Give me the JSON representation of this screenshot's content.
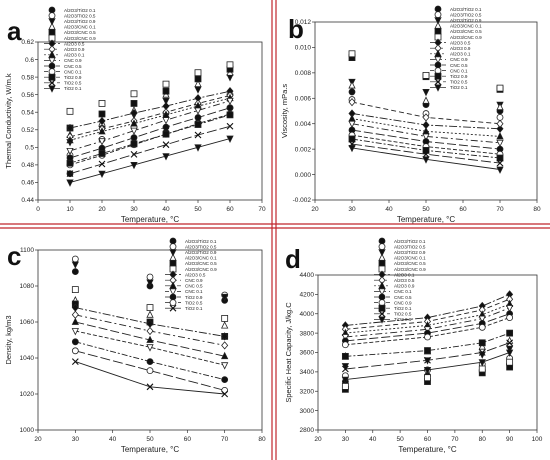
{
  "panels": [
    "a",
    "b",
    "c",
    "d"
  ],
  "divider_color": "#c0262c",
  "chart_data": [
    {
      "panel": "a",
      "type": "scatter",
      "ylabel": "Thermal Conductivity, W/m.k",
      "xlabel": "Temperature, °C",
      "xlim": [
        0,
        70
      ],
      "ylim": [
        0.44,
        0.62
      ],
      "xticks": [
        "0",
        "10",
        "20",
        "30",
        "40",
        "50",
        "60",
        "70"
      ],
      "yticks": [
        "0.44",
        "0.46",
        "0.48",
        "0.5",
        "0.52",
        "0.54",
        "0.56",
        "0.58",
        "0.6",
        "0.62"
      ],
      "x": [
        10,
        20,
        30,
        40,
        50,
        60
      ],
      "legend_position": "top-left",
      "series": [
        {
          "name": "Al2O3/TiO2 0.1",
          "kind": "points",
          "marker": "filled-circle",
          "values": [
            0.47,
            0.491,
            0.505,
            0.517,
            0.528,
            0.545
          ]
        },
        {
          "name": "Al2O3/TiO2 0.5",
          "kind": "points",
          "marker": "open-circle",
          "values": [
            0.491,
            0.509,
            0.523,
            0.539,
            0.548,
            0.56
          ]
        },
        {
          "name": "Al2O3/TiO2 0.9",
          "kind": "points",
          "marker": "filled-triangle-down",
          "values": [
            0.506,
            0.521,
            0.537,
            0.553,
            0.566,
            0.58
          ]
        },
        {
          "name": "Al2O3/CNC 0.1",
          "kind": "points",
          "marker": "open-triangle",
          "values": [
            0.514,
            0.528,
            0.542,
            0.56,
            0.572,
            0.585
          ]
        },
        {
          "name": "Al2O3/CNC 0.5",
          "kind": "points",
          "marker": "filled-square",
          "values": [
            0.522,
            0.538,
            0.55,
            0.564,
            0.578,
            0.589
          ]
        },
        {
          "name": "Al2O3/CNC 0.9",
          "kind": "points",
          "marker": "open-square",
          "values": [
            0.541,
            0.55,
            0.561,
            0.572,
            0.585,
            0.594
          ]
        },
        {
          "name": "Al2O3 0.5",
          "kind": "line",
          "dash": "8 2 2 2",
          "marker": "filled-diamond",
          "values": [
            0.522,
            0.53,
            0.539,
            0.547,
            0.556,
            0.564
          ]
        },
        {
          "name": "Al2O3 0.9",
          "kind": "line",
          "dash": "5 3",
          "marker": "open-diamond",
          "values": [
            0.512,
            0.521,
            0.53,
            0.54,
            0.55,
            0.559
          ]
        },
        {
          "name": "Al2O3 0.1",
          "kind": "line",
          "dash": "2 2",
          "marker": "filled-triangle",
          "values": [
            0.508,
            0.518,
            0.527,
            0.537,
            0.547,
            0.556
          ]
        },
        {
          "name": "CNC 0.9",
          "kind": "line",
          "dash": "7 3 2 3",
          "marker": "open-triangle-down",
          "values": [
            0.496,
            0.507,
            0.519,
            0.531,
            0.542,
            0.553
          ]
        },
        {
          "name": "CNC 0.5",
          "kind": "line",
          "dash": "9 3",
          "marker": "filled-circle",
          "values": [
            0.488,
            0.499,
            0.511,
            0.523,
            0.534,
            0.545
          ]
        },
        {
          "name": "CNC 0.1",
          "kind": "line",
          "dash": "4 2",
          "marker": "open-circle",
          "values": [
            0.48,
            0.491,
            0.503,
            0.515,
            0.527,
            0.538
          ]
        },
        {
          "name": "TiO2 0.9",
          "kind": "line",
          "dash": "6 2 2 2",
          "marker": "filled-square",
          "values": [
            0.482,
            0.493,
            0.504,
            0.515,
            0.526,
            0.537
          ]
        },
        {
          "name": "TiO2 0.5",
          "kind": "line",
          "dash": "10 3",
          "marker": "x",
          "values": [
            0.47,
            0.481,
            0.492,
            0.503,
            0.514,
            0.524
          ]
        },
        {
          "name": "TiO2 0.1",
          "kind": "line",
          "dash": "",
          "marker": "filled-triangle-down",
          "values": [
            0.46,
            0.47,
            0.48,
            0.49,
            0.5,
            0.51
          ]
        }
      ]
    },
    {
      "panel": "b",
      "type": "scatter",
      "ylabel": "Viscosity, mPa.s",
      "xlabel": "Temperature, °C",
      "xlim": [
        20,
        80
      ],
      "ylim": [
        -0.002,
        0.012
      ],
      "xticks": [
        "20",
        "30",
        "40",
        "50",
        "60",
        "70",
        "80"
      ],
      "yticks": [
        "-0.002",
        "0.000",
        "0.002",
        "0.004",
        "0.006",
        "0.008",
        "0.010",
        "0.012"
      ],
      "x": [
        30,
        50,
        70
      ],
      "legend_position": "top-right",
      "series": [
        {
          "name": "Al2O3/TiO2 0.1",
          "kind": "points",
          "marker": "filled-circle",
          "values": [
            0.0065,
            0.0055,
            0.005
          ]
        },
        {
          "name": "Al2O3/TiO2 0.5",
          "kind": "points",
          "marker": "open-circle",
          "values": [
            0.0059,
            0.0048,
            0.0045
          ]
        },
        {
          "name": "Al2O3/TiO2 0.9",
          "kind": "points",
          "marker": "filled-triangle-down",
          "values": [
            0.0073,
            0.0065,
            0.0055
          ]
        },
        {
          "name": "Al2O3/CNC 0.1",
          "kind": "points",
          "marker": "open-triangle",
          "values": [
            0.007,
            0.0058,
            0.0053
          ]
        },
        {
          "name": "Al2O3/CNC 0.5",
          "kind": "points",
          "marker": "filled-square",
          "values": [
            0.0092,
            0.0077,
            0.0067
          ]
        },
        {
          "name": "Al2O3/CNC 0.9",
          "kind": "points",
          "marker": "open-square",
          "values": [
            0.0095,
            0.0078,
            0.0068
          ]
        },
        {
          "name": "Al2O3 0.5",
          "kind": "line",
          "dash": "8 2 2 2",
          "marker": "filled-diamond",
          "values": [
            0.0048,
            0.0039,
            0.0036
          ]
        },
        {
          "name": "Al2O3 0.9",
          "kind": "line",
          "dash": "5 3",
          "marker": "open-diamond",
          "values": [
            0.0057,
            0.0045,
            0.004
          ]
        },
        {
          "name": "Al2O3 0.1",
          "kind": "line",
          "dash": "2 2",
          "marker": "filled-triangle",
          "values": [
            0.0044,
            0.0034,
            0.003
          ]
        },
        {
          "name": "CNC 0.9",
          "kind": "line",
          "dash": "7 3 2 3",
          "marker": "open-triangle-down",
          "values": [
            0.004,
            0.003,
            0.0025
          ]
        },
        {
          "name": "CNC 0.5",
          "kind": "line",
          "dash": "9 3",
          "marker": "filled-circle",
          "values": [
            0.0035,
            0.0026,
            0.002
          ]
        },
        {
          "name": "CNC 0.1",
          "kind": "line",
          "dash": "4 2",
          "marker": "open-circle",
          "values": [
            0.0031,
            0.0022,
            0.0016
          ]
        },
        {
          "name": "TiO2 0.9",
          "kind": "line",
          "dash": "6 2 2 2",
          "marker": "filled-square",
          "values": [
            0.0028,
            0.0019,
            0.0013
          ]
        },
        {
          "name": "TiO2 0.5",
          "kind": "line",
          "dash": "10 3",
          "marker": "x",
          "values": [
            0.0024,
            0.0016,
            0.0009
          ]
        },
        {
          "name": "TiO2 0.1",
          "kind": "line",
          "dash": "",
          "marker": "filled-triangle-down",
          "values": [
            0.0021,
            0.0012,
            0.0004
          ]
        }
      ]
    },
    {
      "panel": "c",
      "type": "scatter",
      "ylabel": "Density, kg/m3",
      "xlabel": "Temperature, °C",
      "xlim": [
        20,
        80
      ],
      "ylim": [
        1000,
        1100
      ],
      "xticks": [
        "20",
        "30",
        "40",
        "50",
        "60",
        "70",
        "80"
      ],
      "yticks": [
        "1000",
        "1020",
        "1040",
        "1060",
        "1080",
        "1100"
      ],
      "x": [
        30,
        50,
        70
      ],
      "legend_position": "top-right",
      "series": [
        {
          "name": "Al2O3/TiO2 0.1",
          "kind": "points",
          "marker": "filled-circle",
          "values": [
            1088,
            1080,
            1072
          ]
        },
        {
          "name": "Al2O3/TiO2 0.5",
          "kind": "points",
          "marker": "open-circle",
          "values": [
            1095,
            1085,
            1075
          ]
        },
        {
          "name": "Al2O3/TiO2 0.9",
          "kind": "points",
          "marker": "filled-triangle-down",
          "values": [
            1092,
            1082,
            1074
          ]
        },
        {
          "name": "Al2O3/CNC 0.1",
          "kind": "points",
          "marker": "open-triangle",
          "values": [
            1072,
            1064,
            1058
          ]
        },
        {
          "name": "Al2O3/CNC 0.5",
          "kind": "points",
          "marker": "filled-square",
          "values": [
            1070,
            1060,
            1052
          ]
        },
        {
          "name": "Al2O3/CNC 0.9",
          "kind": "points",
          "marker": "open-square",
          "values": [
            1078,
            1068,
            1062
          ]
        },
        {
          "name": "Al2O3 0.5",
          "kind": "line",
          "dash": "8 2 2 2",
          "marker": "filled-diamond",
          "values": [
            1068,
            1059,
            1052
          ]
        },
        {
          "name": "CNC 0.9",
          "kind": "line",
          "dash": "7 3 2 3",
          "marker": "open-diamond",
          "values": [
            1064,
            1055,
            1047
          ]
        },
        {
          "name": "CNC 0.5",
          "kind": "line",
          "dash": "9 3",
          "marker": "filled-triangle",
          "values": [
            1060,
            1050,
            1041
          ]
        },
        {
          "name": "CNC 0.1",
          "kind": "line",
          "dash": "4 2",
          "marker": "open-triangle-down",
          "values": [
            1055,
            1046,
            1036
          ]
        },
        {
          "name": "TiO2 0.9",
          "kind": "line",
          "dash": "6 2 2 2",
          "marker": "filled-circle",
          "values": [
            1049,
            1038,
            1028
          ]
        },
        {
          "name": "TiO2 0.5",
          "kind": "line",
          "dash": "10 3",
          "marker": "open-circle",
          "values": [
            1044,
            1033,
            1022
          ]
        },
        {
          "name": "TiO2 0.1",
          "kind": "line",
          "dash": "",
          "marker": "x",
          "values": [
            1038,
            1024,
            1020
          ]
        }
      ]
    },
    {
      "panel": "d",
      "type": "scatter",
      "ylabel": "Specific Heat Capacity, J/kg.C",
      "xlabel": "Temperature, °C",
      "xlim": [
        20,
        100
      ],
      "ylim": [
        2800,
        4400
      ],
      "xticks": [
        "20",
        "30",
        "40",
        "50",
        "60",
        "70",
        "80",
        "90",
        "100"
      ],
      "yticks": [
        "2800",
        "3000",
        "3200",
        "3400",
        "3600",
        "3800",
        "4000",
        "4200",
        "4400"
      ],
      "x": [
        30,
        60,
        80,
        90
      ],
      "legend_position": "top-center",
      "series": [
        {
          "name": "Al2O3/TiO2 0.1",
          "kind": "points",
          "marker": "filled-circle",
          "values": [
            3300,
            3360,
            3420,
            3480
          ]
        },
        {
          "name": "Al2O3/TiO2 0.5",
          "kind": "points",
          "marker": "open-circle",
          "values": [
            3360,
            3420,
            3480,
            3540
          ]
        },
        {
          "name": "Al2O3/TiO2 0.9",
          "kind": "points",
          "marker": "filled-triangle-down",
          "values": [
            3460,
            3520,
            3580,
            3640
          ]
        },
        {
          "name": "Al2O3/CNC 0.1",
          "kind": "points",
          "marker": "open-triangle",
          "values": [
            3560,
            3610,
            3660,
            3720
          ]
        },
        {
          "name": "Al2O3/CNC 0.5",
          "kind": "points",
          "marker": "filled-square",
          "values": [
            3220,
            3300,
            3390,
            3450
          ]
        },
        {
          "name": "Al2O3/CNC 0.9",
          "kind": "points",
          "marker": "open-square",
          "values": [
            3250,
            3340,
            3430,
            3500
          ]
        },
        {
          "name": "Al2O3 0.1",
          "kind": "line",
          "dash": "8 2 2 2",
          "marker": "filled-diamond",
          "values": [
            3880,
            3960,
            4080,
            4200
          ]
        },
        {
          "name": "Al2O3 0.5",
          "kind": "line",
          "dash": "5 3",
          "marker": "open-diamond",
          "values": [
            3840,
            3920,
            4040,
            4150
          ]
        },
        {
          "name": "Al2O3 0.9",
          "kind": "line",
          "dash": "2 2",
          "marker": "filled-triangle",
          "values": [
            3800,
            3880,
            3990,
            4100
          ]
        },
        {
          "name": "CNC 0.1",
          "kind": "line",
          "dash": "7 3 2 3",
          "marker": "open-triangle-down",
          "values": [
            3760,
            3840,
            3950,
            4060
          ]
        },
        {
          "name": "CNC 0.5",
          "kind": "line",
          "dash": "9 3",
          "marker": "filled-circle",
          "values": [
            3720,
            3800,
            3900,
            4000
          ]
        },
        {
          "name": "CNC 0.9",
          "kind": "line",
          "dash": "4 2",
          "marker": "open-circle",
          "values": [
            3680,
            3760,
            3860,
            3960
          ]
        },
        {
          "name": "TiO2 0.1",
          "kind": "line",
          "dash": "6 2 2 2",
          "marker": "filled-square",
          "values": [
            3560,
            3620,
            3700,
            3800
          ]
        },
        {
          "name": "TiO2 0.5",
          "kind": "line",
          "dash": "10 3",
          "marker": "x",
          "values": [
            3430,
            3520,
            3600,
            3700
          ]
        },
        {
          "name": "TiO2 0.9",
          "kind": "line",
          "dash": "",
          "marker": "filled-triangle-down",
          "values": [
            3320,
            3420,
            3500,
            3600
          ]
        }
      ]
    }
  ]
}
